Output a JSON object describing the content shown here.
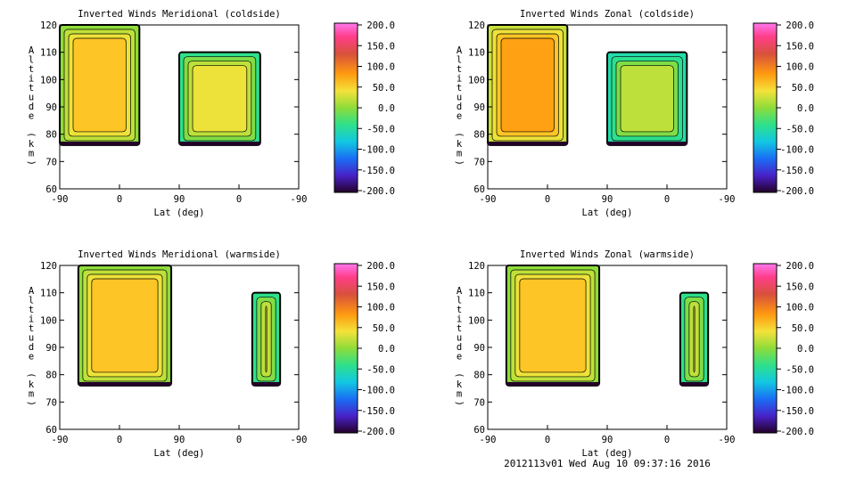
{
  "footer": "2012113v01 Wed Aug 10 09:37:16 2016",
  "chart_data": [
    {
      "type": "heatmap",
      "title": "Inverted Winds Meridional (coldside)",
      "xlabel": "Lat (deg)",
      "ylabel": "Altitude (km)",
      "xticks": [
        "-90",
        "0",
        "90",
        "0",
        "-90"
      ],
      "yticks": [
        "60",
        "70",
        "80",
        "90",
        "100",
        "110",
        "120"
      ],
      "ylim": [
        60,
        120
      ],
      "colorbar": {
        "range": [
          -200,
          200
        ],
        "ticks": [
          "200.0",
          "150.0",
          "100.0",
          "50.0",
          "0.0",
          "-50.0",
          "-100.0",
          "-150.0",
          "-200.0"
        ]
      },
      "regions": [
        {
          "x": [
            -90,
            30
          ],
          "alt": [
            76,
            120
          ],
          "value": 10
        },
        {
          "x": [
            -32,
            90
          ],
          "alt": [
            76,
            110
          ],
          "value": -20
        }
      ]
    },
    {
      "type": "heatmap",
      "title": "Inverted Winds Zonal (coldside)",
      "xlabel": "Lat (deg)",
      "ylabel": "Altitude (km)",
      "xticks": [
        "-90",
        "0",
        "90",
        "0",
        "-90"
      ],
      "yticks": [
        "60",
        "70",
        "80",
        "90",
        "100",
        "110",
        "120"
      ],
      "ylim": [
        60,
        120
      ],
      "colorbar": {
        "range": [
          -200,
          200
        ],
        "ticks": [
          "200.0",
          "150.0",
          "100.0",
          "50.0",
          "0.0",
          "-50.0",
          "-100.0",
          "-150.0",
          "-200.0"
        ]
      },
      "regions": [
        {
          "x": [
            -90,
            30
          ],
          "alt": [
            76,
            120
          ],
          "value": 20
        },
        {
          "x": [
            -30,
            90
          ],
          "alt": [
            76,
            110
          ],
          "value": -40
        }
      ]
    },
    {
      "type": "heatmap",
      "title": "Inverted Winds Meridional (warmside)",
      "xlabel": "Lat (deg)",
      "ylabel": "Altitude (km)",
      "xticks": [
        "-90",
        "0",
        "90",
        "0",
        "-90"
      ],
      "yticks": [
        "60",
        "70",
        "80",
        "90",
        "100",
        "110",
        "120"
      ],
      "ylim": [
        60,
        120
      ],
      "colorbar": {
        "range": [
          -200,
          200
        ],
        "ticks": [
          "200.0",
          "150.0",
          "100.0",
          "50.0",
          "0.0",
          "-50.0",
          "-100.0",
          "-150.0",
          "-200.0"
        ]
      },
      "regions": [
        {
          "x": [
            -62,
            78
          ],
          "alt": [
            76,
            120
          ],
          "value": 0
        },
        {
          "x": [
            -20,
            -62
          ],
          "alt": [
            76,
            110
          ],
          "value": -20
        }
      ]
    },
    {
      "type": "heatmap",
      "title": "Inverted Winds Zonal (warmside)",
      "xlabel": "Lat (deg)",
      "ylabel": "Altitude (km)",
      "xticks": [
        "-90",
        "0",
        "90",
        "0",
        "-90"
      ],
      "yticks": [
        "60",
        "70",
        "80",
        "90",
        "100",
        "110",
        "120"
      ],
      "ylim": [
        60,
        120
      ],
      "colorbar": {
        "range": [
          -200,
          200
        ],
        "ticks": [
          "200.0",
          "150.0",
          "100.0",
          "50.0",
          "0.0",
          "-50.0",
          "-100.0",
          "-150.0",
          "-200.0"
        ]
      },
      "regions": [
        {
          "x": [
            -62,
            78
          ],
          "alt": [
            76,
            120
          ],
          "value": 10
        },
        {
          "x": [
            -20,
            -62
          ],
          "alt": [
            76,
            110
          ],
          "value": -30
        }
      ]
    }
  ]
}
